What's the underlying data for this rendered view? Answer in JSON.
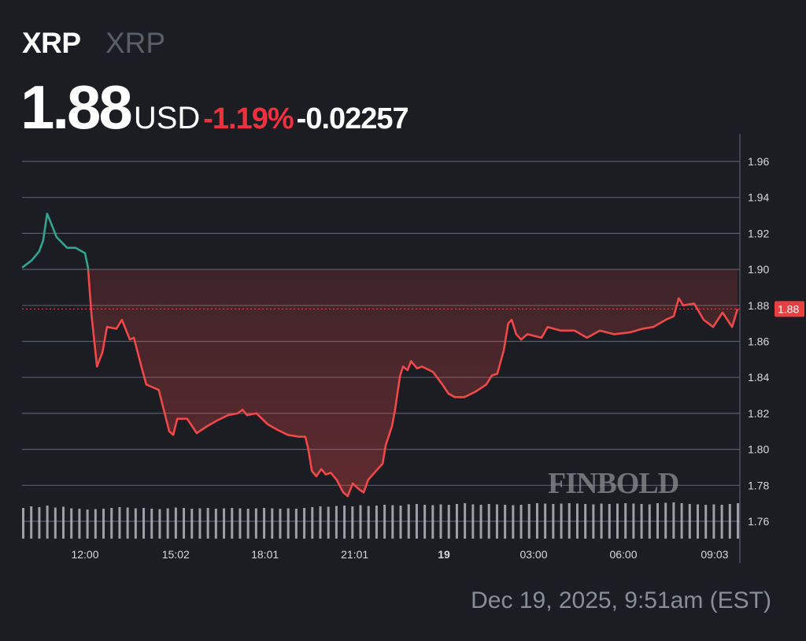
{
  "header": {
    "symbol": "XRP",
    "name": "XRP",
    "price": "1.88",
    "currency": "USD",
    "change_pct": "-1.19%",
    "change_abs": "-0.02257"
  },
  "timestamp": "Dec 19, 2025, 9:51am (EST)",
  "watermark": "FINBOLD",
  "colors": {
    "up": "#2fa58f",
    "down": "#f04848",
    "background": "#1b1d23",
    "price_tag": "#e84040"
  },
  "chart_data": {
    "type": "line",
    "title": "",
    "xlabel": "",
    "ylabel": "",
    "ylim": [
      1.75,
      1.97
    ],
    "y_ticks": [
      "1.96",
      "1.94",
      "1.92",
      "1.90",
      "1.88",
      "1.86",
      "1.84",
      "1.82",
      "1.80",
      "1.78",
      "1.76"
    ],
    "x_ticks": [
      {
        "label": "12:00",
        "t": "2025-12-18T12:00"
      },
      {
        "label": "15:02",
        "t": "2025-12-18T15:02"
      },
      {
        "label": "18:01",
        "t": "2025-12-18T18:01"
      },
      {
        "label": "21:01",
        "t": "2025-12-18T21:01"
      },
      {
        "label": "19",
        "t": "2025-12-19T00:00",
        "bold": true
      },
      {
        "label": "03:00",
        "t": "2025-12-19T03:00"
      },
      {
        "label": "06:00",
        "t": "2025-12-19T06:00"
      },
      {
        "label": "09:03",
        "t": "2025-12-19T09:03"
      }
    ],
    "grid": true,
    "baseline": 1.9,
    "current_price_label": "1.88",
    "current_price": 1.878,
    "series": [
      {
        "points": [
          [
            "2025-12-18T09:54",
            1.901
          ],
          [
            "2025-12-18T10:13",
            1.905
          ],
          [
            "2025-12-18T10:28",
            1.91
          ],
          [
            "2025-12-18T10:36",
            1.916
          ],
          [
            "2025-12-18T10:44",
            1.931
          ],
          [
            "2025-12-18T11:03",
            1.918
          ],
          [
            "2025-12-18T11:24",
            1.912
          ],
          [
            "2025-12-18T11:41",
            1.912
          ],
          [
            "2025-12-18T12:00",
            1.909
          ],
          [
            "2025-12-18T12:06",
            1.901
          ],
          [
            "2025-12-18T12:13",
            1.875
          ],
          [
            "2025-12-18T12:24",
            1.846
          ],
          [
            "2025-12-18T12:35",
            1.854
          ],
          [
            "2025-12-18T12:44",
            1.868
          ],
          [
            "2025-12-18T13:03",
            1.867
          ],
          [
            "2025-12-18T13:14",
            1.872
          ],
          [
            "2025-12-18T13:30",
            1.861
          ],
          [
            "2025-12-18T13:38",
            1.862
          ],
          [
            "2025-12-18T13:54",
            1.845
          ],
          [
            "2025-12-18T14:03",
            1.836
          ],
          [
            "2025-12-18T14:28",
            1.833
          ],
          [
            "2025-12-18T14:49",
            1.81
          ],
          [
            "2025-12-18T14:57",
            1.808
          ],
          [
            "2025-12-18T15:05",
            1.817
          ],
          [
            "2025-12-18T15:25",
            1.817
          ],
          [
            "2025-12-18T15:44",
            1.809
          ],
          [
            "2025-12-18T16:06",
            1.813
          ],
          [
            "2025-12-18T16:25",
            1.816
          ],
          [
            "2025-12-18T16:47",
            1.819
          ],
          [
            "2025-12-18T17:06",
            1.82
          ],
          [
            "2025-12-18T17:16",
            1.822
          ],
          [
            "2025-12-18T17:25",
            1.819
          ],
          [
            "2025-12-18T17:44",
            1.82
          ],
          [
            "2025-12-18T18:06",
            1.814
          ],
          [
            "2025-12-18T18:25",
            1.811
          ],
          [
            "2025-12-18T18:47",
            1.808
          ],
          [
            "2025-12-18T19:09",
            1.807
          ],
          [
            "2025-12-18T19:22",
            1.807
          ],
          [
            "2025-12-18T19:28",
            1.8
          ],
          [
            "2025-12-18T19:35",
            1.788
          ],
          [
            "2025-12-18T19:44",
            1.785
          ],
          [
            "2025-12-18T19:54",
            1.789
          ],
          [
            "2025-12-18T20:03",
            1.786
          ],
          [
            "2025-12-18T20:13",
            1.787
          ],
          [
            "2025-12-18T20:25",
            1.783
          ],
          [
            "2025-12-18T20:38",
            1.776
          ],
          [
            "2025-12-18T20:47",
            1.774
          ],
          [
            "2025-12-18T20:57",
            1.781
          ],
          [
            "2025-12-18T21:09",
            1.778
          ],
          [
            "2025-12-18T21:19",
            1.776
          ],
          [
            "2025-12-18T21:28",
            1.783
          ],
          [
            "2025-12-18T21:47",
            1.789
          ],
          [
            "2025-12-18T21:57",
            1.792
          ],
          [
            "2025-12-18T22:03",
            1.802
          ],
          [
            "2025-12-18T22:16",
            1.813
          ],
          [
            "2025-12-18T22:22",
            1.822
          ],
          [
            "2025-12-18T22:32",
            1.841
          ],
          [
            "2025-12-18T22:38",
            1.846
          ],
          [
            "2025-12-18T22:47",
            1.844
          ],
          [
            "2025-12-18T22:54",
            1.849
          ],
          [
            "2025-12-18T23:06",
            1.845
          ],
          [
            "2025-12-18T23:16",
            1.846
          ],
          [
            "2025-12-18T23:38",
            1.843
          ],
          [
            "2025-12-18T23:57",
            1.836
          ],
          [
            "2025-12-19T00:09",
            1.831
          ],
          [
            "2025-12-19T00:22",
            1.829
          ],
          [
            "2025-12-19T00:41",
            1.829
          ],
          [
            "2025-12-19T01:03",
            1.832
          ],
          [
            "2025-12-19T01:25",
            1.836
          ],
          [
            "2025-12-19T01:36",
            1.841
          ],
          [
            "2025-12-19T01:47",
            1.842
          ],
          [
            "2025-12-19T02:00",
            1.855
          ],
          [
            "2025-12-19T02:09",
            1.87
          ],
          [
            "2025-12-19T02:16",
            1.872
          ],
          [
            "2025-12-19T02:25",
            1.864
          ],
          [
            "2025-12-19T02:35",
            1.861
          ],
          [
            "2025-12-19T02:47",
            1.864
          ],
          [
            "2025-12-19T03:16",
            1.862
          ],
          [
            "2025-12-19T03:28",
            1.868
          ],
          [
            "2025-12-19T03:54",
            1.866
          ],
          [
            "2025-12-19T04:22",
            1.866
          ],
          [
            "2025-12-19T04:47",
            1.862
          ],
          [
            "2025-12-19T05:13",
            1.866
          ],
          [
            "2025-12-19T05:41",
            1.864
          ],
          [
            "2025-12-19T06:13",
            1.865
          ],
          [
            "2025-12-19T06:38",
            1.867
          ],
          [
            "2025-12-19T07:00",
            1.868
          ],
          [
            "2025-12-19T07:25",
            1.872
          ],
          [
            "2025-12-19T07:41",
            1.874
          ],
          [
            "2025-12-19T07:51",
            1.884
          ],
          [
            "2025-12-19T08:00",
            1.88
          ],
          [
            "2025-12-19T08:22",
            1.881
          ],
          [
            "2025-12-19T08:41",
            1.872
          ],
          [
            "2025-12-19T09:00",
            1.868
          ],
          [
            "2025-12-19T09:19",
            1.876
          ],
          [
            "2025-12-19T09:38",
            1.868
          ],
          [
            "2025-12-19T09:49",
            1.878
          ]
        ]
      }
    ],
    "volume_relative": [
      0.78,
      0.82,
      0.8,
      0.84,
      0.79,
      0.81,
      0.77,
      0.76,
      0.74,
      0.75,
      0.76,
      0.78,
      0.8,
      0.79,
      0.77,
      0.78,
      0.76,
      0.75,
      0.77,
      0.79,
      0.78,
      0.76,
      0.77,
      0.78,
      0.76,
      0.77,
      0.78,
      0.77,
      0.76,
      0.77,
      0.78,
      0.77,
      0.76,
      0.77,
      0.76,
      0.78,
      0.8,
      0.82,
      0.81,
      0.83,
      0.84,
      0.82,
      0.85,
      0.83,
      0.84,
      0.86,
      0.85,
      0.84,
      0.87,
      0.88,
      0.86,
      0.85,
      0.87,
      0.86,
      0.88,
      0.9,
      0.87,
      0.86,
      0.88,
      0.87,
      0.86,
      0.85,
      0.86,
      0.88,
      0.9,
      0.89,
      0.88,
      0.89,
      0.9,
      0.89,
      0.88,
      0.87,
      0.89,
      0.88,
      0.89,
      0.9,
      0.89,
      0.88,
      0.87,
      0.9,
      0.91,
      0.92,
      0.9,
      0.88,
      0.87,
      0.86,
      0.87,
      0.86,
      0.88,
      0.9
    ]
  }
}
